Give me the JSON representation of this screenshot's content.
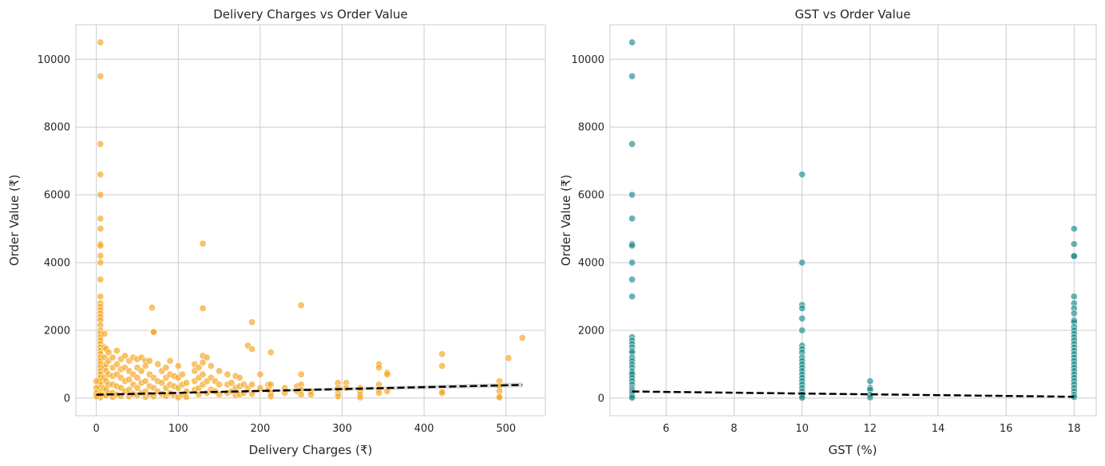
{
  "chart_data": [
    {
      "type": "scatter",
      "title": "Delivery Charges vs Order Value",
      "xlabel": "Delivery Charges (₹)",
      "ylabel": "Order Value (₹)",
      "xlim": [
        -25,
        548
      ],
      "ylim": [
        -520,
        11020
      ],
      "xticks": [
        0,
        100,
        200,
        300,
        400,
        500
      ],
      "yticks": [
        0,
        2000,
        4000,
        6000,
        8000,
        10000
      ],
      "grid": true,
      "point_color": "#f5a31a",
      "trend_color": "#000000",
      "band_color": "#999999",
      "points": [
        [
          5,
          10500
        ],
        [
          5,
          9500
        ],
        [
          5,
          7500
        ],
        [
          5,
          6600
        ],
        [
          5,
          6000
        ],
        [
          5,
          5300
        ],
        [
          5,
          5000
        ],
        [
          5,
          4550
        ],
        [
          5,
          4500
        ],
        [
          5,
          4200
        ],
        [
          5,
          4000
        ],
        [
          5,
          3500
        ],
        [
          5,
          3000
        ],
        [
          5,
          2800
        ],
        [
          5,
          2700
        ],
        [
          5,
          2600
        ],
        [
          5,
          2500
        ],
        [
          5,
          2400
        ],
        [
          5,
          2300
        ],
        [
          5,
          2150
        ],
        [
          5,
          2000
        ],
        [
          5,
          1900
        ],
        [
          5,
          1800
        ],
        [
          5,
          1700
        ],
        [
          5,
          1600
        ],
        [
          5,
          1500
        ],
        [
          5,
          1400
        ],
        [
          5,
          1300
        ],
        [
          5,
          1200
        ],
        [
          5,
          1100
        ],
        [
          5,
          1000
        ],
        [
          5,
          900
        ],
        [
          5,
          800
        ],
        [
          5,
          700
        ],
        [
          5,
          600
        ],
        [
          5,
          500
        ],
        [
          5,
          400
        ],
        [
          5,
          300
        ],
        [
          5,
          200
        ],
        [
          5,
          100
        ],
        [
          5,
          20
        ],
        [
          0,
          500
        ],
        [
          0,
          300
        ],
        [
          0,
          150
        ],
        [
          0,
          50
        ],
        [
          10,
          1900
        ],
        [
          10,
          1500
        ],
        [
          10,
          1200
        ],
        [
          10,
          900
        ],
        [
          10,
          600
        ],
        [
          10,
          300
        ],
        [
          10,
          100
        ],
        [
          12,
          1450
        ],
        [
          12,
          1000
        ],
        [
          12,
          800
        ],
        [
          12,
          500
        ],
        [
          12,
          250
        ],
        [
          12,
          80
        ],
        [
          15,
          1350
        ],
        [
          15,
          1100
        ],
        [
          15,
          700
        ],
        [
          15,
          400
        ],
        [
          15,
          150
        ],
        [
          20,
          1200
        ],
        [
          20,
          900
        ],
        [
          20,
          650
        ],
        [
          20,
          400
        ],
        [
          20,
          150
        ],
        [
          20,
          30
        ],
        [
          25,
          1400
        ],
        [
          25,
          1000
        ],
        [
          25,
          700
        ],
        [
          25,
          350
        ],
        [
          25,
          100
        ],
        [
          30,
          1150
        ],
        [
          30,
          850
        ],
        [
          30,
          600
        ],
        [
          30,
          300
        ],
        [
          30,
          60
        ],
        [
          35,
          1250
        ],
        [
          35,
          900
        ],
        [
          35,
          500
        ],
        [
          35,
          200
        ],
        [
          40,
          1100
        ],
        [
          40,
          800
        ],
        [
          40,
          550
        ],
        [
          40,
          250
        ],
        [
          40,
          50
        ],
        [
          45,
          1200
        ],
        [
          45,
          700
        ],
        [
          45,
          400
        ],
        [
          45,
          120
        ],
        [
          50,
          1150
        ],
        [
          50,
          900
        ],
        [
          50,
          600
        ],
        [
          50,
          300
        ],
        [
          50,
          80
        ],
        [
          55,
          1200
        ],
        [
          55,
          800
        ],
        [
          55,
          450
        ],
        [
          55,
          150
        ],
        [
          60,
          1100
        ],
        [
          60,
          950
        ],
        [
          60,
          500
        ],
        [
          60,
          200
        ],
        [
          60,
          30
        ],
        [
          65,
          1100
        ],
        [
          65,
          700
        ],
        [
          65,
          350
        ],
        [
          65,
          100
        ],
        [
          68,
          2670
        ],
        [
          70,
          1960
        ],
        [
          70,
          1950
        ],
        [
          70,
          600
        ],
        [
          70,
          300
        ],
        [
          70,
          50
        ],
        [
          75,
          1000
        ],
        [
          75,
          500
        ],
        [
          75,
          200
        ],
        [
          80,
          800
        ],
        [
          80,
          450
        ],
        [
          80,
          120
        ],
        [
          85,
          900
        ],
        [
          85,
          600
        ],
        [
          85,
          300
        ],
        [
          85,
          60
        ],
        [
          90,
          1100
        ],
        [
          90,
          700
        ],
        [
          90,
          400
        ],
        [
          90,
          150
        ],
        [
          95,
          650
        ],
        [
          95,
          350
        ],
        [
          95,
          80
        ],
        [
          100,
          950
        ],
        [
          100,
          600
        ],
        [
          100,
          300
        ],
        [
          100,
          20
        ],
        [
          105,
          700
        ],
        [
          105,
          400
        ],
        [
          105,
          100
        ],
        [
          110,
          450
        ],
        [
          110,
          200
        ],
        [
          110,
          30
        ],
        [
          120,
          1000
        ],
        [
          120,
          800
        ],
        [
          120,
          500
        ],
        [
          120,
          250
        ],
        [
          125,
          900
        ],
        [
          125,
          600
        ],
        [
          125,
          300
        ],
        [
          125,
          100
        ],
        [
          130,
          4560
        ],
        [
          130,
          2650
        ],
        [
          130,
          1250
        ],
        [
          130,
          1050
        ],
        [
          130,
          700
        ],
        [
          130,
          400
        ],
        [
          135,
          1200
        ],
        [
          135,
          500
        ],
        [
          135,
          150
        ],
        [
          140,
          950
        ],
        [
          140,
          600
        ],
        [
          140,
          250
        ],
        [
          145,
          500
        ],
        [
          145,
          200
        ],
        [
          150,
          800
        ],
        [
          150,
          400
        ],
        [
          150,
          100
        ],
        [
          160,
          700
        ],
        [
          160,
          400
        ],
        [
          160,
          150
        ],
        [
          165,
          450
        ],
        [
          165,
          200
        ],
        [
          170,
          650
        ],
        [
          170,
          300
        ],
        [
          170,
          80
        ],
        [
          175,
          600
        ],
        [
          175,
          350
        ],
        [
          175,
          100
        ],
        [
          180,
          400
        ],
        [
          180,
          150
        ],
        [
          185,
          1550
        ],
        [
          185,
          300
        ],
        [
          190,
          2240
        ],
        [
          190,
          1450
        ],
        [
          190,
          400
        ],
        [
          190,
          120
        ],
        [
          200,
          700
        ],
        [
          200,
          300
        ],
        [
          210,
          400
        ],
        [
          210,
          250
        ],
        [
          213,
          1350
        ],
        [
          213,
          400
        ],
        [
          213,
          150
        ],
        [
          213,
          50
        ],
        [
          230,
          300
        ],
        [
          230,
          150
        ],
        [
          245,
          350
        ],
        [
          245,
          200
        ],
        [
          250,
          2740
        ],
        [
          250,
          700
        ],
        [
          250,
          400
        ],
        [
          250,
          250
        ],
        [
          250,
          100
        ],
        [
          262,
          200
        ],
        [
          262,
          100
        ],
        [
          295,
          450
        ],
        [
          295,
          300
        ],
        [
          295,
          150
        ],
        [
          295,
          50
        ],
        [
          305,
          450
        ],
        [
          305,
          300
        ],
        [
          322,
          300
        ],
        [
          322,
          200
        ],
        [
          322,
          100
        ],
        [
          322,
          20
        ],
        [
          345,
          1000
        ],
        [
          345,
          900
        ],
        [
          345,
          400
        ],
        [
          345,
          250
        ],
        [
          345,
          150
        ],
        [
          355,
          750
        ],
        [
          355,
          700
        ],
        [
          355,
          200
        ],
        [
          422,
          1300
        ],
        [
          422,
          950
        ],
        [
          422,
          200
        ],
        [
          422,
          150
        ],
        [
          492,
          500
        ],
        [
          492,
          350
        ],
        [
          492,
          200
        ],
        [
          492,
          50
        ],
        [
          492,
          20
        ],
        [
          503,
          1180
        ],
        [
          520,
          1780
        ]
      ],
      "trend": [
        [
          0,
          100
        ],
        [
          520,
          390
        ]
      ]
    },
    {
      "type": "scatter",
      "title": "GST vs Order Value",
      "xlabel": "GST (%)",
      "ylabel": "Order Value (₹)",
      "xlim": [
        4.35,
        18.65
      ],
      "ylim": [
        -520,
        11020
      ],
      "xticks": [
        6,
        8,
        10,
        12,
        14,
        16,
        18
      ],
      "yticks": [
        0,
        2000,
        4000,
        6000,
        8000,
        10000
      ],
      "grid": true,
      "point_color": "#1a8a8a",
      "trend_color": "#000000",
      "points": [
        [
          5,
          10500
        ],
        [
          5,
          9500
        ],
        [
          5,
          7500
        ],
        [
          5,
          6000
        ],
        [
          5,
          5300
        ],
        [
          5,
          4550
        ],
        [
          5,
          4500
        ],
        [
          5,
          4000
        ],
        [
          5,
          3500
        ],
        [
          5,
          3000
        ],
        [
          5,
          1800
        ],
        [
          5,
          1700
        ],
        [
          5,
          1600
        ],
        [
          5,
          1500
        ],
        [
          5,
          1400
        ],
        [
          5,
          1350
        ],
        [
          5,
          1200
        ],
        [
          5,
          1100
        ],
        [
          5,
          1000
        ],
        [
          5,
          900
        ],
        [
          5,
          800
        ],
        [
          5,
          750
        ],
        [
          5,
          700
        ],
        [
          5,
          600
        ],
        [
          5,
          500
        ],
        [
          5,
          400
        ],
        [
          5,
          300
        ],
        [
          5,
          250
        ],
        [
          5,
          200
        ],
        [
          5,
          150
        ],
        [
          5,
          100
        ],
        [
          5,
          50
        ],
        [
          5,
          10
        ],
        [
          10,
          6600
        ],
        [
          10,
          4000
        ],
        [
          10,
          2750
        ],
        [
          10,
          2650
        ],
        [
          10,
          2350
        ],
        [
          10,
          2000
        ],
        [
          10,
          1550
        ],
        [
          10,
          1450
        ],
        [
          10,
          1350
        ],
        [
          10,
          1200
        ],
        [
          10,
          1100
        ],
        [
          10,
          1000
        ],
        [
          10,
          900
        ],
        [
          10,
          800
        ],
        [
          10,
          700
        ],
        [
          10,
          600
        ],
        [
          10,
          500
        ],
        [
          10,
          400
        ],
        [
          10,
          300
        ],
        [
          10,
          200
        ],
        [
          10,
          100
        ],
        [
          10,
          50
        ],
        [
          10,
          10
        ],
        [
          12,
          500
        ],
        [
          12,
          300
        ],
        [
          12,
          250
        ],
        [
          12,
          100
        ],
        [
          12,
          20
        ],
        [
          18,
          5000
        ],
        [
          18,
          4550
        ],
        [
          18,
          4200
        ],
        [
          18,
          4190
        ],
        [
          18,
          3000
        ],
        [
          18,
          2800
        ],
        [
          18,
          2650
        ],
        [
          18,
          2500
        ],
        [
          18,
          2300
        ],
        [
          18,
          2250
        ],
        [
          18,
          2100
        ],
        [
          18,
          2000
        ],
        [
          18,
          1900
        ],
        [
          18,
          1800
        ],
        [
          18,
          1700
        ],
        [
          18,
          1600
        ],
        [
          18,
          1500
        ],
        [
          18,
          1400
        ],
        [
          18,
          1300
        ],
        [
          18,
          1200
        ],
        [
          18,
          1100
        ],
        [
          18,
          1000
        ],
        [
          18,
          900
        ],
        [
          18,
          800
        ],
        [
          18,
          700
        ],
        [
          18,
          600
        ],
        [
          18,
          500
        ],
        [
          18,
          400
        ],
        [
          18,
          300
        ],
        [
          18,
          200
        ],
        [
          18,
          100
        ],
        [
          18,
          30
        ]
      ],
      "trend": [
        [
          5,
          195
        ],
        [
          18,
          40
        ]
      ]
    }
  ]
}
